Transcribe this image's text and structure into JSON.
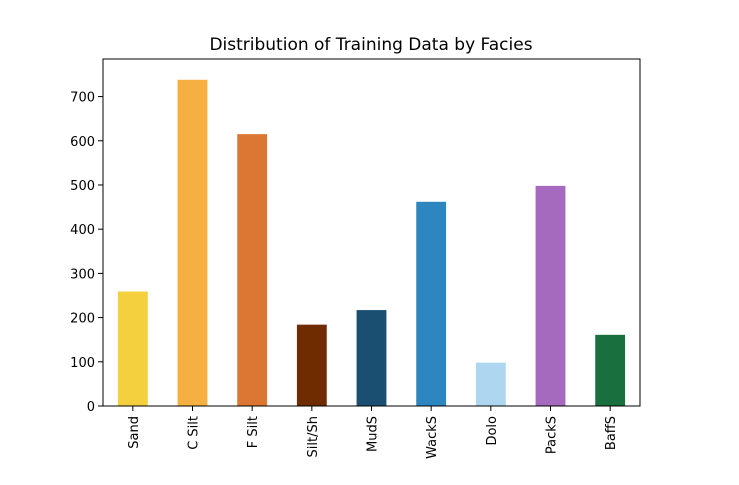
{
  "chart_data": {
    "type": "bar",
    "title": "Distribution of Training Data by Facies",
    "xlabel": "",
    "ylabel": "",
    "categories": [
      "Sand",
      "C Silt",
      "F Silt",
      "Silt/Sh",
      "MudS",
      "WackS",
      "Dolo",
      "PackS",
      "BaffS"
    ],
    "values": [
      259,
      738,
      615,
      184,
      217,
      462,
      98,
      498,
      161
    ],
    "colors": [
      "#F4D03F",
      "#F5B041",
      "#DC7633",
      "#6E2C00",
      "#1B4F72",
      "#2E86C1",
      "#AED6F1",
      "#A569BD",
      "#196F3D"
    ],
    "ylim": [
      0,
      785
    ],
    "yticks": [
      0,
      100,
      200,
      300,
      400,
      500,
      600,
      700
    ],
    "grid": false,
    "legend": "none"
  }
}
